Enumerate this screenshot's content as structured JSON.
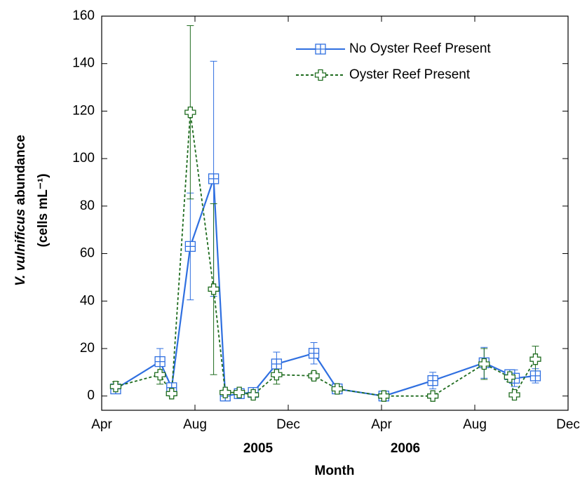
{
  "chart_data": {
    "type": "line",
    "x": [
      0.6,
      2.5,
      3.0,
      3.8,
      4.8,
      5.3,
      5.9,
      6.5,
      7.5,
      9.1,
      10.1,
      12.1,
      14.2,
      16.4,
      17.5,
      17.7,
      18.6
    ],
    "series": [
      {
        "name": "No Oyster Reef Present",
        "color": "#2f6fe0",
        "marker": "square",
        "dash": "solid",
        "values": [
          3,
          14.5,
          3.5,
          63,
          91.5,
          0,
          1,
          1.5,
          13.5,
          18,
          3,
          0,
          6.5,
          14,
          9,
          7.5,
          8.5
        ],
        "errors": [
          1,
          5.5,
          1,
          22.5,
          49.5,
          0.5,
          0.5,
          0.5,
          5,
          4.5,
          1,
          0.5,
          3.5,
          6.5,
          1.5,
          3.5,
          3
        ]
      },
      {
        "name": "Oyster Reef Present",
        "color": "#1e6b1e",
        "marker": "cross",
        "dash": "dotted",
        "values": [
          4,
          9,
          1,
          119.5,
          45,
          1.5,
          1.5,
          0.5,
          9,
          8.5,
          3,
          0,
          0,
          13.5,
          8,
          0.5,
          15.5
        ],
        "errors": [
          2,
          4,
          1,
          36.5,
          36,
          1,
          1,
          0.5,
          4,
          1.5,
          1,
          0.5,
          0.5,
          6.5,
          2,
          0.5,
          5.5
        ]
      }
    ],
    "xlim": [
      0,
      20
    ],
    "xticks": [
      {
        "value": 0,
        "label": "Apr"
      },
      {
        "value": 4,
        "label": "Aug"
      },
      {
        "value": 8,
        "label": "Dec"
      },
      {
        "value": 12,
        "label": "Apr"
      },
      {
        "value": 16,
        "label": "Aug"
      },
      {
        "value": 20,
        "label": "Dec"
      }
    ],
    "year_labels": [
      "2005",
      "2006"
    ],
    "ylim": [
      -6,
      160
    ],
    "yticks": [
      0,
      20,
      40,
      60,
      80,
      100,
      120,
      140,
      160
    ],
    "xlabel": "Month",
    "ylabel_italic": "V. vulnificus",
    "ylabel_rest": "abundance",
    "ylabel_units": "(cells mL⁻¹)",
    "legend": "upper right",
    "grid": false
  }
}
